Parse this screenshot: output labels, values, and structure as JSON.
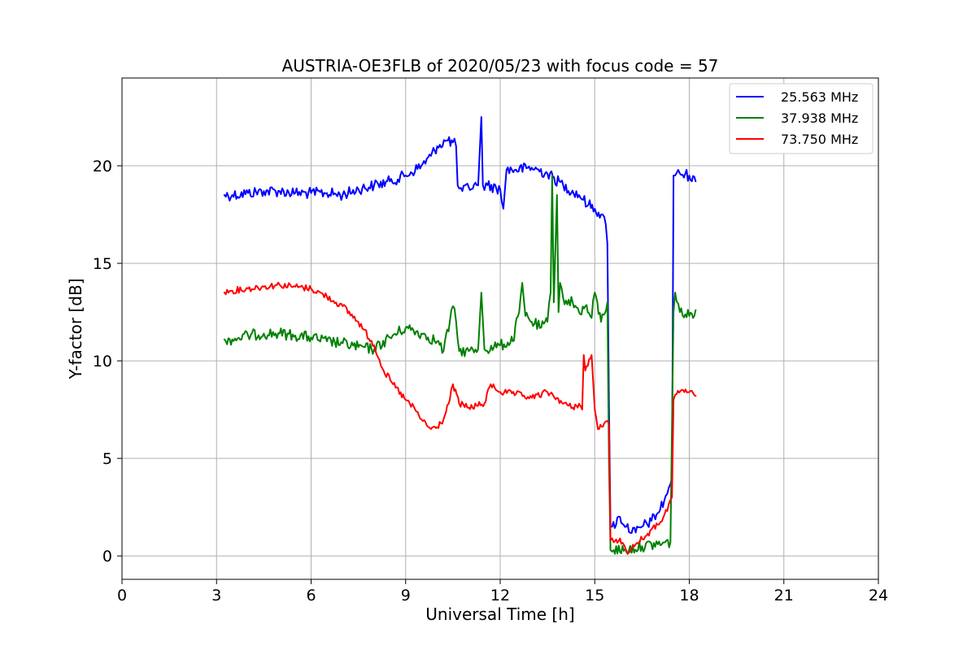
{
  "chart_data": {
    "type": "line",
    "title": "AUSTRIA-OE3FLB of 2020/05/23 with focus code = 57",
    "xlabel": "Universal Time [h]",
    "ylabel": "Y-factor [dB]",
    "xlim": [
      0,
      24
    ],
    "ylim": [
      -1.2,
      24.5
    ],
    "xticks": [
      0,
      3,
      6,
      9,
      12,
      15,
      18,
      21,
      24
    ],
    "yticks": [
      0,
      5,
      10,
      15,
      20
    ],
    "grid": true,
    "legend_position": "top-right",
    "series": [
      {
        "name": "25.563 MHz",
        "color": "#0000ff",
        "x": [
          3.25,
          3.5,
          4.0,
          4.5,
          5.0,
          5.5,
          6.0,
          6.5,
          7.0,
          7.5,
          8.0,
          8.5,
          9.0,
          9.5,
          9.8,
          10.0,
          10.3,
          10.5,
          10.6,
          10.65,
          10.8,
          11.0,
          11.3,
          11.4,
          11.45,
          11.6,
          12.0,
          12.1,
          12.2,
          12.5,
          13.0,
          13.5,
          14.0,
          14.5,
          14.8,
          15.0,
          15.2,
          15.35,
          15.4,
          15.45,
          15.5,
          15.55,
          15.8,
          16.0,
          16.3,
          16.5,
          16.8,
          17.0,
          17.2,
          17.35,
          17.45,
          17.5,
          17.55,
          17.7,
          18.0,
          18.2
        ],
        "y": [
          18.5,
          18.5,
          18.6,
          18.7,
          18.7,
          18.6,
          18.6,
          18.6,
          18.5,
          18.8,
          19.0,
          19.2,
          19.5,
          20.0,
          20.5,
          21.0,
          21.3,
          21.2,
          21.0,
          19.0,
          18.7,
          18.9,
          19.0,
          22.5,
          19.0,
          19.0,
          18.8,
          17.8,
          19.8,
          19.8,
          19.9,
          19.6,
          19.0,
          18.5,
          18.0,
          17.8,
          17.5,
          17.0,
          16.0,
          8.0,
          1.5,
          1.5,
          2.0,
          1.5,
          1.2,
          1.5,
          1.8,
          2.2,
          2.8,
          3.5,
          4.0,
          19.5,
          19.5,
          19.6,
          19.5,
          19.2
        ]
      },
      {
        "name": "37.938 MHz",
        "color": "#008000",
        "x": [
          3.25,
          3.5,
          4.0,
          4.5,
          5.0,
          5.5,
          6.0,
          6.5,
          7.0,
          7.5,
          8.0,
          8.5,
          9.0,
          9.5,
          10.0,
          10.2,
          10.4,
          10.5,
          10.6,
          10.7,
          11.0,
          11.3,
          11.4,
          11.5,
          11.8,
          12.0,
          12.4,
          12.6,
          12.7,
          12.8,
          13.0,
          13.3,
          13.5,
          13.6,
          13.65,
          13.7,
          13.8,
          13.85,
          13.9,
          14.0,
          14.3,
          14.5,
          14.7,
          14.9,
          15.0,
          15.2,
          15.4,
          15.45,
          15.5,
          15.6,
          16.0,
          16.5,
          17.0,
          17.4,
          17.5,
          17.55,
          17.7,
          18.0,
          18.2
        ],
        "y": [
          11.1,
          11.1,
          11.3,
          11.4,
          11.4,
          11.3,
          11.2,
          11.0,
          10.9,
          10.7,
          10.6,
          11.2,
          11.7,
          11.4,
          11.0,
          10.5,
          12.0,
          12.8,
          12.0,
          10.5,
          10.5,
          10.6,
          13.5,
          10.6,
          10.7,
          10.8,
          11.0,
          12.5,
          14.0,
          12.3,
          12.0,
          11.7,
          12.0,
          13.5,
          19.5,
          13.0,
          18.5,
          12.5,
          14.0,
          13.2,
          13.0,
          12.5,
          12.8,
          12.2,
          13.5,
          12.0,
          13.0,
          5.0,
          0.3,
          0.3,
          0.3,
          0.5,
          0.6,
          0.7,
          12.5,
          13.5,
          12.5,
          12.3,
          12.6
        ]
      },
      {
        "name": "73.750 MHz",
        "color": "#ff0000",
        "x": [
          3.25,
          3.5,
          4.0,
          4.5,
          5.0,
          5.5,
          6.0,
          6.5,
          7.0,
          7.5,
          8.0,
          8.3,
          8.6,
          9.0,
          9.3,
          9.5,
          9.8,
          10.0,
          10.2,
          10.4,
          10.5,
          10.7,
          11.0,
          11.5,
          11.7,
          12.0,
          12.5,
          13.0,
          13.5,
          13.8,
          14.0,
          14.3,
          14.5,
          14.6,
          14.65,
          14.7,
          14.9,
          15.0,
          15.1,
          15.3,
          15.45,
          15.5,
          15.6,
          15.8,
          16.0,
          16.3,
          16.6,
          17.0,
          17.3,
          17.45,
          17.5,
          17.6,
          17.8,
          18.0,
          18.2
        ],
        "y": [
          13.5,
          13.6,
          13.7,
          13.8,
          13.9,
          13.8,
          13.7,
          13.3,
          12.8,
          12.0,
          10.8,
          9.5,
          8.8,
          8.0,
          7.5,
          7.0,
          6.5,
          6.6,
          7.0,
          8.0,
          8.8,
          7.8,
          7.6,
          7.8,
          8.8,
          8.4,
          8.3,
          8.1,
          8.4,
          8.1,
          7.8,
          7.6,
          7.8,
          7.5,
          10.3,
          9.5,
          10.3,
          7.5,
          6.5,
          6.8,
          6.8,
          0.8,
          0.7,
          0.9,
          0.2,
          0.6,
          1.0,
          1.6,
          2.3,
          3.0,
          8.0,
          8.3,
          8.5,
          8.4,
          8.2
        ]
      }
    ]
  }
}
